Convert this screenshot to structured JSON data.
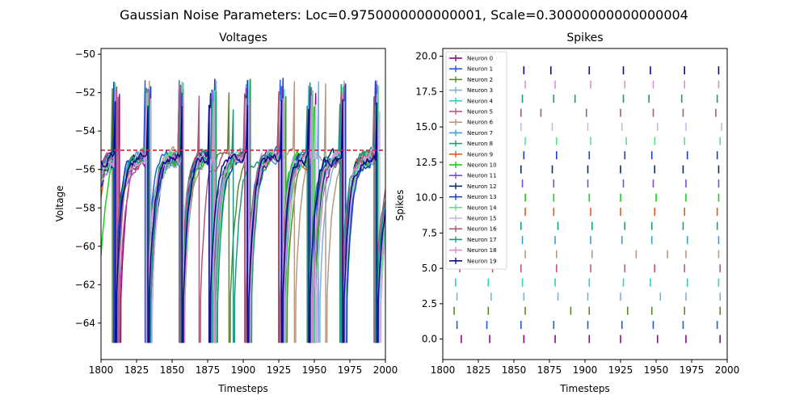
{
  "figure": {
    "title": "Gaussian Noise Parameters: Loc=0.9750000000000001, Scale=0.30000000000000004"
  },
  "chart_data": [
    {
      "type": "line",
      "title": "Voltages",
      "xlabel": "Timesteps",
      "ylabel": "Voltage",
      "xlim": [
        1800,
        2000
      ],
      "ylim": [
        -65.9,
        -49.7
      ],
      "xticks": [
        1800,
        1825,
        1850,
        1875,
        1900,
        1925,
        1950,
        1975,
        2000
      ],
      "yticks": [
        -64,
        -62,
        -60,
        -58,
        -56,
        -54,
        -52,
        -50
      ],
      "threshold": -55,
      "threshold_color": "#d62728",
      "reset_voltage": -65,
      "grid": false,
      "series": [
        {
          "color": "#8b0a8b",
          "spikes": [
            1813,
            1833,
            1857,
            1879,
            1903,
            1925,
            1951,
            1971,
            1995
          ],
          "start": -56.0
        },
        {
          "color": "#1f5fd6",
          "spikes": [
            1810,
            1831,
            1855,
            1878,
            1902,
            1926,
            1948,
            1969,
            1993
          ],
          "start": -56.5
        },
        {
          "color": "#5b8a2a",
          "spikes": [
            1808,
            1832,
            1858,
            1890,
            1903,
            1930,
            1947,
            1970,
            1995
          ],
          "start": -57.0
        },
        {
          "color": "#7fb0d8",
          "spikes": [
            1810,
            1834,
            1857,
            1881,
            1902,
            1925,
            1953,
            1971,
            1995
          ],
          "start": -56.8
        },
        {
          "color": "#2ed1c4",
          "spikes": [
            1809,
            1832,
            1856,
            1879,
            1903,
            1927,
            1946,
            1972,
            1994
          ],
          "start": -57.2
        },
        {
          "color": "#c2528a",
          "spikes": [
            1812,
            1835,
            1855,
            1880,
            1904,
            1928,
            1949,
            1970,
            1995
          ],
          "start": -56.2
        },
        {
          "color": "#b89a84",
          "spikes": [
            1811,
            1834,
            1858,
            1880,
            1905,
            1936,
            1958,
            1971,
            1994
          ],
          "start": -57.5
        },
        {
          "color": "#3a9fd8",
          "spikes": [
            1810,
            1834,
            1856,
            1879,
            1904,
            1926,
            1947,
            1972,
            1994
          ],
          "start": -56.6
        },
        {
          "color": "#17a06a",
          "spikes": [
            1809,
            1832,
            1855,
            1881,
            1905,
            1928,
            1947,
            1969,
            1993
          ],
          "start": -56.9
        },
        {
          "color": "#e05a1a",
          "spikes": [
            1810,
            1834,
            1858,
            1878,
            1904,
            1925,
            1949,
            1970,
            1993
          ],
          "start": -57.8
        },
        {
          "color": "#18d018",
          "spikes": [
            1810,
            1834,
            1858,
            1878,
            1903,
            1925,
            1950,
            1971,
            1994
          ],
          "start": -62.5
        },
        {
          "color": "#7a4bd6",
          "spikes": [
            1811,
            1833,
            1856,
            1878,
            1902,
            1927,
            1948,
            1971,
            1994
          ],
          "start": -56.4
        },
        {
          "color": "#0d2a6a",
          "spikes": [
            1810,
            1835,
            1855,
            1877,
            1902,
            1925,
            1949,
            1969,
            1994
          ],
          "start": -56.3
        },
        {
          "color": "#1b3fc0",
          "spikes": [
            1809,
            1835,
            1857,
            1880,
            1903,
            1928,
            1947,
            1972,
            1993
          ],
          "start": -57.1
        },
        {
          "color": "#5fe08a",
          "spikes": [
            1810,
            1833,
            1858,
            1880,
            1904,
            1929,
            1949,
            1970,
            1995
          ],
          "start": -56.7
        },
        {
          "color": "#c9b8f0",
          "spikes": [
            1811,
            1835,
            1855,
            1877,
            1902,
            1926,
            1951,
            1971,
            1996
          ],
          "start": -57.3
        },
        {
          "color": "#a85a7a",
          "spikes": [
            1811,
            1834,
            1855,
            1869,
            1901,
            1925,
            1948,
            1969,
            1992
          ],
          "start": -56.1
        },
        {
          "color": "#1a9a80",
          "spikes": [
            1810,
            1834,
            1856,
            1878,
            1893,
            1927,
            1945,
            1968,
            1993
          ],
          "start": -55.9
        },
        {
          "color": "#d98fd4",
          "spikes": [
            1810,
            1832,
            1858,
            1879,
            1904,
            1928,
            1948,
            1970,
            1994
          ],
          "start": -56.6
        },
        {
          "color": "#0a0a8a",
          "spikes": [
            1810,
            1833,
            1857,
            1876,
            1903,
            1927,
            1946,
            1970,
            1994
          ],
          "start": -55.8
        }
      ]
    },
    {
      "type": "scatter",
      "title": "Spikes",
      "xlabel": "Timesteps",
      "ylabel": "Spikes",
      "xlim": [
        1800,
        2000
      ],
      "ylim": [
        -1.45,
        20.55
      ],
      "xticks": [
        1800,
        1825,
        1850,
        1875,
        1900,
        1925,
        1950,
        1975,
        2000
      ],
      "yticks": [
        0.0,
        2.5,
        5.0,
        7.5,
        10.0,
        12.5,
        15.0,
        17.5,
        20.0
      ],
      "ytick_labels": [
        "0.0",
        "2.5",
        "5.0",
        "7.5",
        "10.0",
        "12.5",
        "15.0",
        "17.5",
        "20.0"
      ],
      "marker": "|",
      "legend_position": "upper-left",
      "legend": [
        "Neuron 0",
        "Neuron 1",
        "Neuron 2",
        "Neuron 3",
        "Neuron 4",
        "Neuron 5",
        "Neuron 6",
        "Neuron 7",
        "Neuron 8",
        "Neuron 9",
        "Neuron 10",
        "Neuron 11",
        "Neuron 12",
        "Neuron 13",
        "Neuron 14",
        "Neuron 15",
        "Neuron 16",
        "Neuron 17",
        "Neuron 18",
        "Neuron 19"
      ]
    }
  ]
}
